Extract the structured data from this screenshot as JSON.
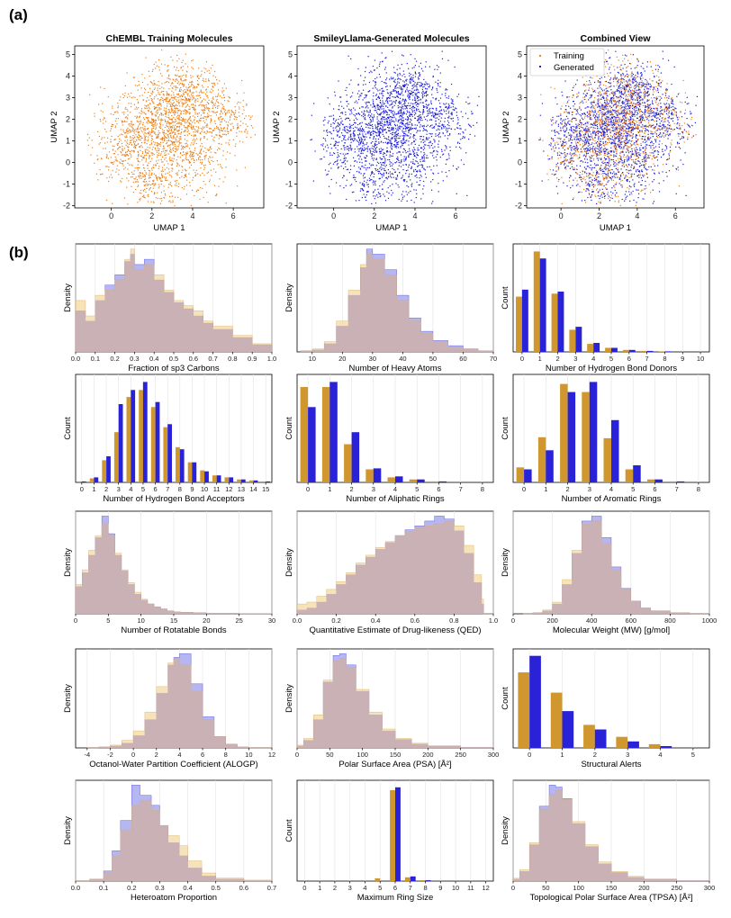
{
  "figure": {
    "label_a": "(a)",
    "label_b": "(b)"
  },
  "colors": {
    "training": "#e8821e",
    "generated": "#1f1fd6",
    "bar_training": "#cf972e",
    "bar_generated": "#2a22d8",
    "hist_training_fill": "#f3d79b",
    "hist_generated_fill": "#a9a9ef",
    "hist_overlap": "#c6aeb5",
    "grid": "#e3e3e3"
  },
  "chart_data": [
    {
      "type": "scatter",
      "id": "umap-training",
      "title": "ChEMBL Training Molecules",
      "xlabel": "UMAP 1",
      "ylabel": "UMAP 2",
      "xlim": [
        -1.8,
        7.5
      ],
      "ylim": [
        -2.1,
        5.4
      ],
      "xticks": [
        0,
        2,
        4,
        6
      ],
      "yticks": [
        -2,
        -1,
        0,
        1,
        2,
        3,
        4,
        5
      ],
      "series": [
        {
          "name": "Training",
          "color_key": "training"
        }
      ]
    },
    {
      "type": "scatter",
      "id": "umap-generated",
      "title": "SmileyLlama-Generated Molecules",
      "xlabel": "UMAP 1",
      "ylabel": "",
      "xlim": [
        -1.8,
        7.5
      ],
      "ylim": [
        -2.1,
        5.4
      ],
      "xticks": [
        0,
        2,
        4,
        6
      ],
      "yticks": [
        -2,
        -1,
        0,
        1,
        2,
        3,
        4,
        5
      ],
      "series": [
        {
          "name": "Generated",
          "color_key": "generated"
        }
      ]
    },
    {
      "type": "scatter",
      "id": "umap-combined",
      "title": "Combined View",
      "xlabel": "UMAP 1",
      "ylabel": "",
      "xlim": [
        -1.8,
        7.5
      ],
      "ylim": [
        -2.1,
        5.4
      ],
      "xticks": [
        0,
        2,
        4,
        6
      ],
      "yticks": [
        -2,
        -1,
        0,
        1,
        2,
        3,
        4,
        5
      ],
      "legend": [
        "Training",
        "Generated"
      ],
      "legend_loc": "top-left",
      "series": [
        {
          "name": "Generated",
          "color_key": "generated"
        },
        {
          "name": "Training",
          "color_key": "training"
        }
      ]
    },
    {
      "type": "area",
      "id": "fsp3",
      "xlabel": "Fraction of sp3 Carbons",
      "ylabel": "Density",
      "xlim": [
        0,
        1
      ],
      "xticks": [
        0.0,
        0.1,
        0.2,
        0.3,
        0.4,
        0.5,
        0.6,
        0.7,
        0.8,
        0.9,
        1.0
      ],
      "x": [
        0.0,
        0.05,
        0.1,
        0.15,
        0.2,
        0.25,
        0.28,
        0.3,
        0.35,
        0.4,
        0.45,
        0.5,
        0.55,
        0.6,
        0.65,
        0.7,
        0.8,
        0.9,
        1.0
      ],
      "series": [
        {
          "name": "Training",
          "values": [
            0.5,
            0.35,
            0.55,
            0.6,
            0.7,
            0.9,
            1.0,
            0.8,
            0.85,
            0.75,
            0.6,
            0.5,
            0.45,
            0.4,
            0.3,
            0.25,
            0.16,
            0.08,
            0.05
          ]
        },
        {
          "name": "Generated",
          "values": [
            0.4,
            0.3,
            0.5,
            0.65,
            0.75,
            0.88,
            0.95,
            0.85,
            0.9,
            0.7,
            0.58,
            0.48,
            0.42,
            0.35,
            0.28,
            0.22,
            0.14,
            0.07,
            0.04
          ]
        }
      ]
    },
    {
      "type": "area",
      "id": "heavy",
      "xlabel": "Number of Heavy Atoms",
      "ylabel": "Density",
      "xlim": [
        5,
        70
      ],
      "xticks": [
        10,
        20,
        30,
        40,
        50,
        60,
        70
      ],
      "x": [
        6,
        10,
        14,
        18,
        22,
        26,
        28,
        30,
        34,
        38,
        42,
        46,
        50,
        55,
        60,
        65,
        70
      ],
      "series": [
        {
          "name": "Training",
          "values": [
            0.01,
            0.03,
            0.1,
            0.3,
            0.6,
            0.85,
            0.95,
            0.9,
            0.75,
            0.5,
            0.3,
            0.18,
            0.1,
            0.05,
            0.03,
            0.01,
            0.0
          ]
        },
        {
          "name": "Generated",
          "values": [
            0.01,
            0.02,
            0.08,
            0.25,
            0.55,
            0.82,
            1.0,
            0.95,
            0.8,
            0.55,
            0.33,
            0.2,
            0.11,
            0.06,
            0.03,
            0.01,
            0.0
          ]
        }
      ]
    },
    {
      "type": "bar",
      "id": "hbd",
      "xlabel": "Number of Hydrogen Bond Donors",
      "ylabel": "Count",
      "categories": [
        0,
        1,
        2,
        3,
        4,
        5,
        6,
        7,
        8,
        9
      ],
      "xticks": [
        0,
        1,
        2,
        3,
        4,
        5,
        6,
        7,
        8,
        9,
        10
      ],
      "series": [
        {
          "name": "Training",
          "values": [
            0.55,
            1.0,
            0.58,
            0.22,
            0.08,
            0.04,
            0.02,
            0.01,
            0.005,
            0.0
          ]
        },
        {
          "name": "Generated",
          "values": [
            0.62,
            0.93,
            0.6,
            0.25,
            0.09,
            0.04,
            0.02,
            0.01,
            0.005,
            0.0
          ]
        }
      ]
    },
    {
      "type": "bar",
      "id": "hba",
      "xlabel": "Number of Hydrogen Bond Acceptors",
      "ylabel": "Count",
      "categories": [
        0,
        1,
        2,
        3,
        4,
        5,
        6,
        7,
        8,
        9,
        10,
        11,
        12,
        13,
        14,
        15
      ],
      "xticks": [
        0,
        1,
        2,
        3,
        4,
        5,
        6,
        7,
        8,
        9,
        10,
        11,
        12,
        13,
        14,
        15
      ],
      "series": [
        {
          "name": "Training",
          "values": [
            0.01,
            0.04,
            0.22,
            0.5,
            0.85,
            0.92,
            0.75,
            0.55,
            0.35,
            0.2,
            0.12,
            0.07,
            0.05,
            0.03,
            0.02,
            0.01
          ]
        },
        {
          "name": "Generated",
          "values": [
            0.01,
            0.05,
            0.26,
            0.78,
            0.92,
            1.0,
            0.8,
            0.58,
            0.33,
            0.2,
            0.11,
            0.07,
            0.05,
            0.03,
            0.02,
            0.01
          ]
        }
      ]
    },
    {
      "type": "bar",
      "id": "aliph",
      "xlabel": "Number of Aliphatic Rings",
      "ylabel": "Count",
      "categories": [
        0,
        1,
        2,
        3,
        4,
        5,
        6,
        7,
        8
      ],
      "xticks": [
        0,
        1,
        2,
        3,
        4,
        5,
        6,
        7,
        8
      ],
      "series": [
        {
          "name": "Training",
          "values": [
            0.95,
            0.95,
            0.38,
            0.13,
            0.05,
            0.03,
            0.01,
            0.0,
            0.0
          ]
        },
        {
          "name": "Generated",
          "values": [
            0.75,
            1.0,
            0.5,
            0.14,
            0.06,
            0.03,
            0.01,
            0.0,
            0.0
          ]
        }
      ]
    },
    {
      "type": "bar",
      "id": "arom",
      "xlabel": "Number of Aromatic Rings",
      "ylabel": "Count",
      "categories": [
        0,
        1,
        2,
        3,
        4,
        5,
        6,
        7,
        8
      ],
      "xticks": [
        0,
        1,
        2,
        3,
        4,
        5,
        6,
        7,
        8
      ],
      "series": [
        {
          "name": "Training",
          "values": [
            0.15,
            0.45,
            0.98,
            0.9,
            0.44,
            0.13,
            0.03,
            0.01,
            0.0
          ]
        },
        {
          "name": "Generated",
          "values": [
            0.13,
            0.32,
            0.9,
            1.0,
            0.62,
            0.17,
            0.03,
            0.01,
            0.0
          ]
        }
      ]
    },
    {
      "type": "area",
      "id": "rotb",
      "xlabel": "Number of Rotatable Bonds",
      "ylabel": "Density",
      "xlim": [
        0,
        30
      ],
      "xticks": [
        0,
        5,
        10,
        15,
        20,
        25,
        30
      ],
      "x": [
        0,
        1,
        2,
        3,
        4,
        5,
        6,
        7,
        8,
        9,
        10,
        11,
        12,
        13,
        14,
        15,
        16,
        18,
        20,
        25,
        30
      ],
      "series": [
        {
          "name": "Training",
          "values": [
            0.3,
            0.45,
            0.65,
            0.8,
            0.92,
            0.8,
            0.62,
            0.45,
            0.32,
            0.22,
            0.15,
            0.1,
            0.07,
            0.05,
            0.03,
            0.02,
            0.015,
            0.01,
            0.005,
            0.002,
            0.0
          ]
        },
        {
          "name": "Generated",
          "values": [
            0.28,
            0.42,
            0.6,
            0.78,
            1.0,
            0.82,
            0.6,
            0.44,
            0.3,
            0.2,
            0.14,
            0.1,
            0.07,
            0.05,
            0.03,
            0.02,
            0.015,
            0.01,
            0.005,
            0.002,
            0.0
          ]
        }
      ]
    },
    {
      "type": "area",
      "id": "qed",
      "xlabel": "Quantitative Estimate of Drug-likeness (QED)",
      "ylabel": "Density",
      "xlim": [
        0,
        1
      ],
      "xticks": [
        0.0,
        0.2,
        0.4,
        0.6,
        0.8,
        1.0
      ],
      "x": [
        0.0,
        0.05,
        0.1,
        0.15,
        0.2,
        0.25,
        0.3,
        0.35,
        0.4,
        0.45,
        0.5,
        0.55,
        0.6,
        0.65,
        0.7,
        0.75,
        0.8,
        0.85,
        0.9,
        0.94,
        0.95
      ],
      "series": [
        {
          "name": "Training",
          "values": [
            0.1,
            0.12,
            0.18,
            0.25,
            0.33,
            0.42,
            0.52,
            0.6,
            0.68,
            0.74,
            0.8,
            0.84,
            0.88,
            0.9,
            0.92,
            0.95,
            0.9,
            0.7,
            0.4,
            0.15,
            0.0
          ]
        },
        {
          "name": "Generated",
          "values": [
            0.04,
            0.06,
            0.12,
            0.2,
            0.3,
            0.4,
            0.5,
            0.58,
            0.66,
            0.73,
            0.8,
            0.86,
            0.9,
            0.95,
            1.0,
            0.97,
            0.85,
            0.62,
            0.32,
            0.1,
            0.0
          ]
        }
      ]
    },
    {
      "type": "area",
      "id": "mw",
      "xlabel": "Molecular Weight (MW) [g/mol]",
      "ylabel": "Density",
      "xlim": [
        0,
        1000
      ],
      "xticks": [
        0,
        200,
        400,
        600,
        800,
        1000
      ],
      "x": [
        50,
        100,
        150,
        200,
        250,
        300,
        350,
        400,
        450,
        500,
        550,
        600,
        650,
        700,
        800,
        900,
        1000
      ],
      "series": [
        {
          "name": "Training",
          "values": [
            0.0,
            0.01,
            0.04,
            0.12,
            0.35,
            0.65,
            0.92,
            0.95,
            0.72,
            0.45,
            0.25,
            0.13,
            0.06,
            0.03,
            0.01,
            0.0,
            0.0
          ]
        },
        {
          "name": "Generated",
          "values": [
            0.0,
            0.01,
            0.03,
            0.1,
            0.3,
            0.62,
            0.95,
            1.0,
            0.78,
            0.48,
            0.26,
            0.13,
            0.06,
            0.03,
            0.01,
            0.0,
            0.0
          ]
        }
      ]
    },
    {
      "type": "area",
      "id": "alogp",
      "xlabel": "Octanol-Water Partition Coefficient (ALOGP)",
      "ylabel": "Density",
      "xlim": [
        -5,
        12
      ],
      "xticks": [
        -4,
        -2,
        0,
        2,
        4,
        6,
        8,
        10,
        12
      ],
      "x": [
        -4,
        -3,
        -2,
        -1,
        0,
        1,
        2,
        3,
        3.5,
        4,
        5,
        6,
        7,
        8,
        9,
        10,
        11
      ],
      "series": [
        {
          "name": "Training",
          "values": [
            0.0,
            0.01,
            0.03,
            0.08,
            0.18,
            0.38,
            0.65,
            0.9,
            0.95,
            0.88,
            0.6,
            0.3,
            0.12,
            0.04,
            0.01,
            0.0,
            0.0
          ]
        },
        {
          "name": "Generated",
          "values": [
            0.0,
            0.01,
            0.02,
            0.05,
            0.13,
            0.3,
            0.58,
            0.88,
            0.96,
            1.0,
            0.68,
            0.33,
            0.12,
            0.04,
            0.01,
            0.0,
            0.0
          ]
        }
      ]
    },
    {
      "type": "area",
      "id": "psa",
      "xlabel": "Polar Surface Area (PSA) [Å²]",
      "ylabel": "Density",
      "xlim": [
        0,
        300
      ],
      "xticks": [
        0,
        50,
        100,
        150,
        200,
        250,
        300
      ],
      "x": [
        0,
        10,
        25,
        40,
        55,
        65,
        75,
        90,
        110,
        130,
        150,
        175,
        200,
        250,
        300
      ],
      "series": [
        {
          "name": "Training",
          "values": [
            0.03,
            0.1,
            0.35,
            0.72,
            0.92,
            0.95,
            0.85,
            0.62,
            0.38,
            0.2,
            0.1,
            0.05,
            0.02,
            0.005,
            0.0
          ]
        },
        {
          "name": "Generated",
          "values": [
            0.02,
            0.08,
            0.3,
            0.7,
            0.98,
            1.0,
            0.88,
            0.6,
            0.35,
            0.18,
            0.09,
            0.04,
            0.02,
            0.005,
            0.0
          ]
        }
      ]
    },
    {
      "type": "bar",
      "id": "alerts",
      "xlabel": "Structural Alerts",
      "ylabel": "Count",
      "categories": [
        0,
        1,
        2,
        3,
        4
      ],
      "xticks": [
        0,
        1,
        2,
        3,
        4,
        5
      ],
      "series": [
        {
          "name": "Training",
          "values": [
            0.82,
            0.6,
            0.25,
            0.12,
            0.04
          ]
        },
        {
          "name": "Generated",
          "values": [
            1.0,
            0.4,
            0.2,
            0.07,
            0.02
          ]
        }
      ]
    },
    {
      "type": "area",
      "id": "hetero",
      "xlabel": "Heteroatom Proportion",
      "ylabel": "Density",
      "xlim": [
        0,
        0.7
      ],
      "xticks": [
        0.0,
        0.1,
        0.2,
        0.3,
        0.4,
        0.5,
        0.6,
        0.7
      ],
      "x": [
        0.0,
        0.05,
        0.1,
        0.13,
        0.16,
        0.2,
        0.23,
        0.27,
        0.3,
        0.33,
        0.37,
        0.4,
        0.45,
        0.5,
        0.6,
        0.7
      ],
      "series": [
        {
          "name": "Training",
          "values": [
            0.0,
            0.02,
            0.08,
            0.25,
            0.5,
            0.75,
            0.8,
            0.7,
            0.55,
            0.45,
            0.35,
            0.2,
            0.08,
            0.03,
            0.01,
            0.0
          ]
        },
        {
          "name": "Generated",
          "values": [
            0.0,
            0.02,
            0.1,
            0.3,
            0.6,
            0.95,
            0.85,
            0.75,
            0.55,
            0.38,
            0.25,
            0.13,
            0.05,
            0.02,
            0.005,
            0.0
          ]
        }
      ]
    },
    {
      "type": "bar",
      "id": "maxring",
      "xlabel": "Maximum Ring Size",
      "ylabel": "Count",
      "categories": [
        5,
        6,
        7,
        8
      ],
      "xticks": [
        0,
        1,
        2,
        3,
        4,
        5,
        6,
        7,
        8,
        9,
        10,
        11,
        12
      ],
      "series": [
        {
          "name": "Training",
          "values": [
            0.03,
            0.97,
            0.04,
            0.01
          ]
        },
        {
          "name": "Generated",
          "values": [
            0.0,
            1.0,
            0.05,
            0.01
          ]
        }
      ]
    },
    {
      "type": "area",
      "id": "tpsa",
      "xlabel": "Topological Polar Surface Area (TPSA) [Å²]",
      "ylabel": "Density",
      "xlim": [
        0,
        300
      ],
      "xticks": [
        0,
        50,
        100,
        150,
        200,
        250,
        300
      ],
      "x": [
        0,
        10,
        25,
        40,
        55,
        65,
        75,
        90,
        110,
        130,
        150,
        175,
        200,
        250,
        300
      ],
      "series": [
        {
          "name": "Training",
          "values": [
            0.03,
            0.12,
            0.4,
            0.75,
            0.9,
            0.95,
            0.85,
            0.62,
            0.38,
            0.2,
            0.1,
            0.05,
            0.02,
            0.005,
            0.0
          ]
        },
        {
          "name": "Generated",
          "values": [
            0.02,
            0.1,
            0.38,
            0.78,
            1.0,
            0.98,
            0.86,
            0.6,
            0.36,
            0.18,
            0.09,
            0.04,
            0.02,
            0.005,
            0.0
          ]
        }
      ]
    }
  ]
}
